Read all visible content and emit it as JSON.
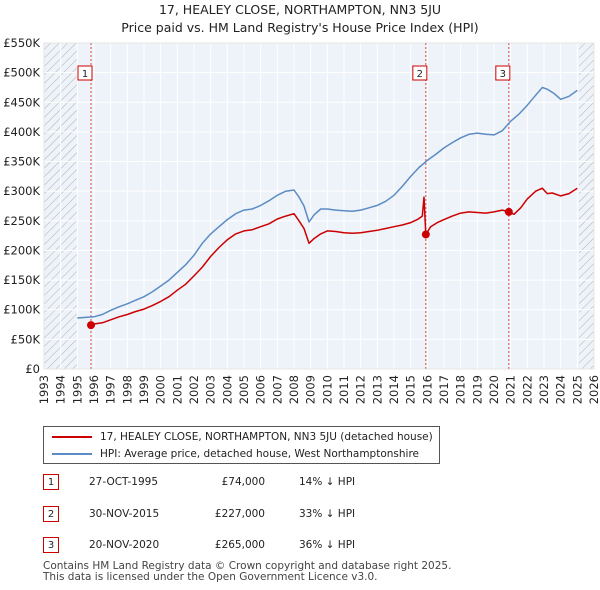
{
  "chart_data": {
    "type": "line",
    "title": "17, HEALEY CLOSE, NORTHAMPTON, NN3 5JU",
    "subtitle": "Price paid vs. HM Land Registry's House Price Index (HPI)",
    "xlabel": "",
    "ylabel": "",
    "xlim": [
      1993,
      2026
    ],
    "ylim": [
      0,
      550000
    ],
    "x_ticks": [
      1993,
      1994,
      1995,
      1996,
      1997,
      1998,
      1999,
      2000,
      2001,
      2002,
      2003,
      2004,
      2005,
      2006,
      2007,
      2008,
      2009,
      2010,
      2011,
      2012,
      2013,
      2014,
      2015,
      2016,
      2017,
      2018,
      2019,
      2020,
      2021,
      2022,
      2023,
      2024,
      2025,
      2026
    ],
    "y_ticks": [
      0,
      50000,
      100000,
      150000,
      200000,
      250000,
      300000,
      350000,
      400000,
      450000,
      500000,
      550000
    ],
    "y_tick_labels": [
      "£0",
      "£50K",
      "£100K",
      "£150K",
      "£200K",
      "£250K",
      "£300K",
      "£350K",
      "£400K",
      "£450K",
      "£500K",
      "£550K"
    ],
    "grid": true,
    "hatched_ranges": [
      [
        1993,
        1995.0
      ],
      [
        2025.1,
        2026
      ]
    ],
    "series": [
      {
        "name": "17, HEALEY CLOSE, NORTHAMPTON, NN3 5JU (detached house)",
        "color": "#cc0000",
        "x": [
          1995.82,
          1996.0,
          1996.5,
          1997.0,
          1997.5,
          1998.0,
          1998.5,
          1999.0,
          1999.5,
          2000.0,
          2000.5,
          2001.0,
          2001.5,
          2002.0,
          2002.5,
          2003.0,
          2003.5,
          2004.0,
          2004.5,
          2005.0,
          2005.5,
          2006.0,
          2006.5,
          2007.0,
          2007.5,
          2008.0,
          2008.3,
          2008.6,
          2008.9,
          2009.2,
          2009.6,
          2010.0,
          2010.5,
          2011.0,
          2011.5,
          2012.0,
          2012.5,
          2013.0,
          2013.5,
          2014.0,
          2014.5,
          2015.0,
          2015.4,
          2015.7,
          2015.8,
          2015.91,
          2016.2,
          2016.6,
          2017.0,
          2017.5,
          2018.0,
          2018.5,
          2019.0,
          2019.5,
          2020.0,
          2020.5,
          2020.89,
          2021.2,
          2021.6,
          2022.0,
          2022.5,
          2022.9,
          2023.2,
          2023.5,
          2024.0,
          2024.5,
          2025.0
        ],
        "values": [
          74000,
          76000,
          78000,
          83000,
          88000,
          92000,
          97000,
          101000,
          107000,
          114000,
          122000,
          133000,
          143000,
          157000,
          172000,
          190000,
          205000,
          218000,
          228000,
          233000,
          235000,
          240000,
          245000,
          253000,
          258000,
          262000,
          250000,
          237000,
          212000,
          220000,
          228000,
          233000,
          232000,
          230000,
          229000,
          230000,
          232000,
          234000,
          237000,
          240000,
          243000,
          247000,
          252000,
          258000,
          290000,
          227000,
          240000,
          247000,
          252000,
          258000,
          263000,
          265000,
          264000,
          263000,
          265000,
          268000,
          265000,
          261000,
          272000,
          287000,
          300000,
          305000,
          296000,
          297000,
          292000,
          296000,
          305000
        ]
      },
      {
        "name": "HPI: Average price, detached house, West Northamptonshire",
        "color": "#5b8cc4",
        "x": [
          1995.0,
          1995.5,
          1996.0,
          1996.5,
          1997.0,
          1997.5,
          1998.0,
          1998.5,
          1999.0,
          1999.5,
          2000.0,
          2000.5,
          2001.0,
          2001.5,
          2002.0,
          2002.5,
          2003.0,
          2003.5,
          2004.0,
          2004.5,
          2005.0,
          2005.5,
          2006.0,
          2006.5,
          2007.0,
          2007.5,
          2008.0,
          2008.3,
          2008.6,
          2008.9,
          2009.2,
          2009.6,
          2010.0,
          2010.5,
          2011.0,
          2011.5,
          2012.0,
          2012.5,
          2013.0,
          2013.5,
          2014.0,
          2014.5,
          2015.0,
          2015.5,
          2016.0,
          2016.5,
          2017.0,
          2017.5,
          2018.0,
          2018.5,
          2019.0,
          2019.5,
          2020.0,
          2020.5,
          2021.0,
          2021.5,
          2022.0,
          2022.5,
          2022.9,
          2023.2,
          2023.6,
          2024.0,
          2024.5,
          2025.0
        ],
        "values": [
          86000,
          87000,
          88000,
          92000,
          99000,
          105000,
          110000,
          116000,
          122000,
          130000,
          140000,
          150000,
          163000,
          176000,
          192000,
          212000,
          228000,
          240000,
          252000,
          262000,
          268000,
          270000,
          276000,
          284000,
          293000,
          300000,
          302000,
          290000,
          275000,
          248000,
          260000,
          270000,
          270000,
          268000,
          267000,
          266000,
          268000,
          272000,
          276000,
          283000,
          293000,
          308000,
          325000,
          340000,
          352000,
          362000,
          373000,
          382000,
          390000,
          396000,
          398000,
          396000,
          395000,
          402000,
          418000,
          430000,
          445000,
          462000,
          475000,
          472000,
          465000,
          455000,
          460000,
          470000
        ]
      }
    ],
    "sales": [
      {
        "label": "1",
        "x": 1995.82,
        "value": 74000
      },
      {
        "label": "2",
        "x": 2015.91,
        "value": 227000
      },
      {
        "label": "3",
        "x": 2020.89,
        "value": 265000
      }
    ]
  },
  "legend": {
    "property": "17, HEALEY CLOSE, NORTHAMPTON, NN3 5JU (detached house)",
    "hpi": "HPI: Average price, detached house, West Northamptonshire"
  },
  "sales_table": [
    {
      "num": "1",
      "date": "27-OCT-1995",
      "price": "£74,000",
      "hpi": "14% ↓ HPI"
    },
    {
      "num": "2",
      "date": "30-NOV-2015",
      "price": "£227,000",
      "hpi": "33% ↓ HPI"
    },
    {
      "num": "3",
      "date": "20-NOV-2020",
      "price": "£265,000",
      "hpi": "36% ↓ HPI"
    }
  ],
  "footer": {
    "line1": "Contains HM Land Registry data © Crown copyright and database right 2025.",
    "line2": "This data is licensed under the Open Government Licence v3.0."
  },
  "colors": {
    "property": "#cc0000",
    "hpi": "#5b8cc4",
    "plot_bg": "#eef2f9",
    "grid": "#ffffff",
    "hatch": "#b0b0b0"
  }
}
